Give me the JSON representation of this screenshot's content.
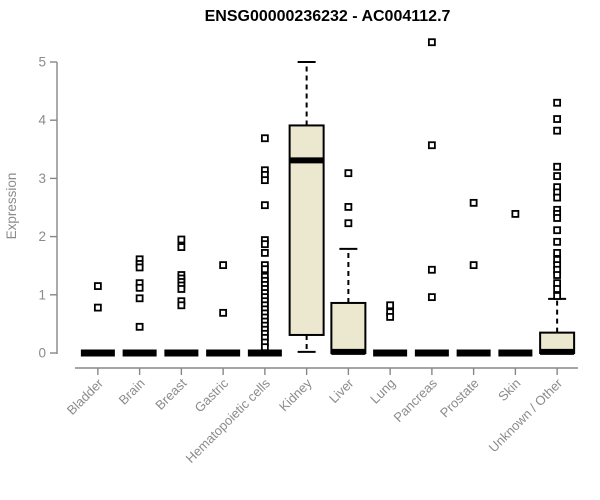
{
  "title": "ENSG00000236232 - AC004112.7",
  "chart_data": {
    "type": "boxplot",
    "title": "ENSG00000236232 - AC004112.7",
    "ylabel": "Expression",
    "xlabel": "",
    "ylim": [
      0,
      5.45
    ],
    "yticks": [
      0,
      1,
      2,
      3,
      4,
      5
    ],
    "grid": false,
    "legend": "none",
    "x_label_rotation": 45,
    "background": "#ffffff",
    "box_fill": "#ece8cf",
    "box_stroke": "#000000",
    "axis_color": "#878787",
    "text_color": "#8b8b8b",
    "categories": [
      "Bladder",
      "Brain",
      "Breast",
      "Gastric",
      "Hematopoietic cells",
      "Kidney",
      "Liver",
      "Lung",
      "Pancreas",
      "Prostate",
      "Skin",
      "Unknown / Other"
    ],
    "series": [
      {
        "name": "Bladder",
        "low": 0,
        "q1": 0,
        "median": 0,
        "q3": 0,
        "high": 0,
        "outliers": [
          1.15,
          0.78
        ]
      },
      {
        "name": "Brain",
        "low": 0,
        "q1": 0,
        "median": 0,
        "q3": 0,
        "high": 0,
        "outliers": [
          1.61,
          1.53,
          1.47,
          1.2,
          1.12,
          0.94,
          0.45
        ]
      },
      {
        "name": "Breast",
        "low": 0,
        "q1": 0,
        "median": 0,
        "q3": 0,
        "high": 0,
        "outliers": [
          1.95,
          1.82,
          1.34,
          1.28,
          1.22,
          1.16,
          1.1,
          0.89,
          0.82
        ]
      },
      {
        "name": "Gastric",
        "low": 0,
        "q1": 0,
        "median": 0,
        "q3": 0,
        "high": 0,
        "outliers": [
          1.51,
          0.69
        ]
      },
      {
        "name": "Hematopoietic cells",
        "low": 0,
        "q1": 0,
        "median": 0,
        "q3": 0,
        "high": 0,
        "outliers": [
          3.69,
          3.14,
          3.06,
          2.97,
          2.54,
          1.94,
          1.87,
          1.72,
          1.51,
          1.44,
          1.31,
          1.24,
          1.17,
          1.1,
          1.03,
          0.96,
          0.89,
          0.82,
          0.75,
          0.68,
          0.61,
          0.54,
          0.47,
          0.4,
          0.33,
          0.26,
          0.18,
          0.1
        ]
      },
      {
        "name": "Kidney",
        "low": 0.02,
        "q1": 0.31,
        "median": 3.31,
        "q3": 3.91,
        "high": 5.0,
        "outliers": []
      },
      {
        "name": "Liver",
        "low": 0,
        "q1": 0,
        "median": 0.02,
        "q3": 0.86,
        "high": 1.79,
        "outliers": [
          3.09,
          2.51,
          2.23
        ]
      },
      {
        "name": "Lung",
        "low": 0,
        "q1": 0,
        "median": 0,
        "q3": 0,
        "high": 0,
        "outliers": [
          0.82,
          0.7,
          0.62
        ]
      },
      {
        "name": "Pancreas",
        "low": 0,
        "q1": 0,
        "median": 0,
        "q3": 0,
        "high": 0,
        "outliers": [
          5.34,
          3.57,
          1.43,
          0.96
        ]
      },
      {
        "name": "Prostate",
        "low": 0,
        "q1": 0,
        "median": 0,
        "q3": 0,
        "high": 0,
        "outliers": [
          2.58,
          1.51
        ]
      },
      {
        "name": "Skin",
        "low": 0,
        "q1": 0,
        "median": 0,
        "q3": 0,
        "high": 0,
        "outliers": [
          2.39
        ]
      },
      {
        "name": "Unknown / Other",
        "low": 0,
        "q1": 0,
        "median": 0.02,
        "q3": 0.35,
        "high": 0.93,
        "outliers": [
          4.3,
          4.02,
          3.82,
          3.2,
          3.04,
          2.85,
          2.76,
          2.67,
          2.46,
          2.39,
          2.32,
          2.11,
          1.91,
          1.72,
          1.6,
          1.51,
          1.43,
          1.34,
          1.2,
          1.1,
          0.98
        ]
      }
    ]
  }
}
